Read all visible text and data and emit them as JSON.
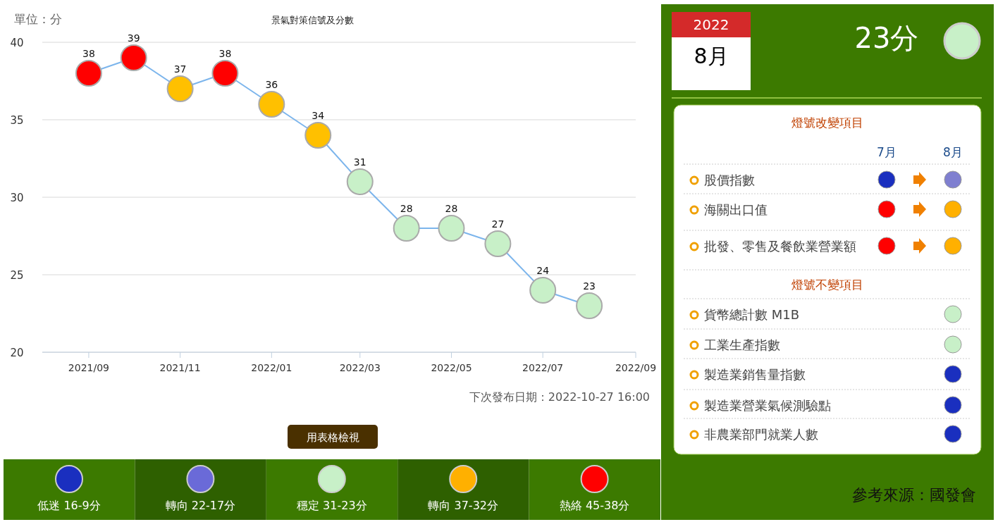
{
  "chart_data": [
    {
      "type": "line",
      "title": "景氣對策信號及分數",
      "ylabel": "單位：分",
      "x": [
        "2021-09",
        "2021-10",
        "2021-11",
        "2021-12",
        "2022-01",
        "2022-02",
        "2022-03",
        "2022-04",
        "2022-05",
        "2022-06",
        "2022-07",
        "2022-08"
      ],
      "values": [
        38,
        39,
        37,
        38,
        36,
        34,
        31,
        28,
        28,
        27,
        24,
        23
      ],
      "color": "#7cb5ec",
      "colors": [
        "#ff0000",
        "#ff0000",
        "#ffc000",
        "#ff0000",
        "#ffc000",
        "#ffc000",
        "#c8f0c8",
        "#c8f0c8",
        "#c8f0c8",
        "#c8f0c8",
        "#c8f0c8",
        "#c8f0c8"
      ],
      "marker": "circle",
      "data_labels": true,
      "grid": "y",
      "xlim": [
        "2021-08",
        "2022-09"
      ],
      "xticks": [
        {
          "value": "2021-09",
          "label": "2021/09"
        },
        {
          "value": "2021-11",
          "label": "2021/11"
        },
        {
          "value": "2022-01",
          "label": "2022/01"
        },
        {
          "value": "2022-03",
          "label": "2022/03"
        },
        {
          "value": "2022-05",
          "label": "2022/05"
        },
        {
          "value": "2022-07",
          "label": "2022/07"
        },
        {
          "value": "2022-09",
          "label": "2022/09"
        }
      ],
      "ylim": [
        20,
        40
      ],
      "yticks": [
        20,
        25,
        30,
        35,
        40
      ],
      "annotations": [
        "下次發布日期：2022-10-27 16:00",
        "用表格檢視",
        "低迷 16-9分",
        "轉向 22-17分",
        "穩定 31-23分",
        "轉向 37-32分",
        "熱絡 45-38分"
      ]
    },
    {
      "type": "other",
      "annotations": [
        "2022",
        "8月",
        "23分",
        "燈號改變項目",
        "7月",
        "8月",
        "股價指數",
        "海關出口值",
        "批發、零售及餐飲業營業額",
        "燈號不變項目",
        "貨幣總計數 M1B",
        "工業生產指數",
        "製造業銷售量指數",
        "製造業營業氣候測驗點",
        "非農業部門就業人數",
        "參考來源：國發會"
      ]
    }
  ]
}
